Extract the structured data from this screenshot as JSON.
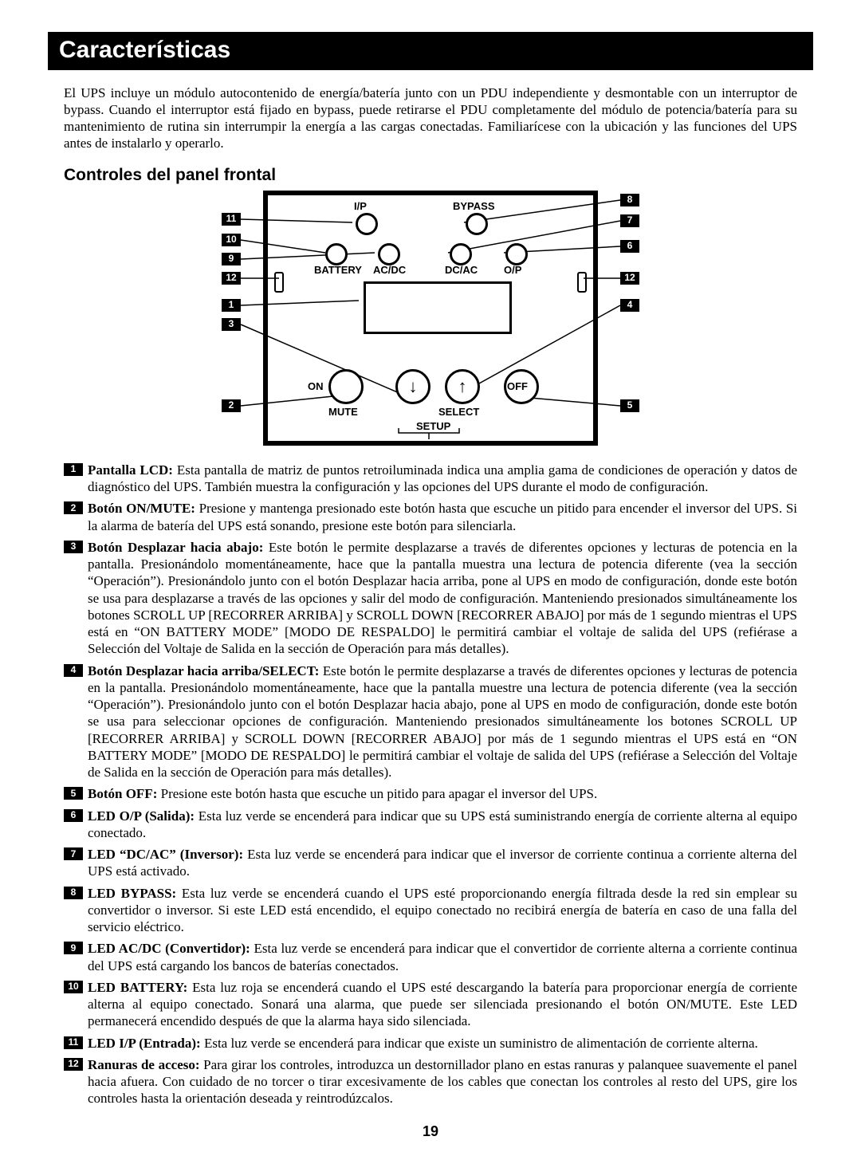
{
  "title": "Características",
  "intro": "El UPS incluye un módulo autocontenido de energía/batería junto con un PDU independiente y desmontable con un interruptor de bypass. Cuando el interruptor está fijado en bypass, puede retirarse el PDU completamente del módulo de potencia/batería para su mantenimiento de rutina sin interrumpir la energía a las cargas conectadas. Familiarícese con la ubicación y las funciones del UPS antes de instalarlo y operarlo.",
  "subhead": "Controles del panel frontal",
  "page_number": "19",
  "diagram": {
    "top_labels": {
      "ip": "I/P",
      "bypass": "BYPASS"
    },
    "mid_labels": {
      "battery": "BATTERY",
      "acdc": "AC/DC",
      "dcac": "DC/AC",
      "op": "O/P"
    },
    "btn_labels": {
      "on": "ON",
      "mute": "MUTE",
      "select": "SELECT",
      "setup": "SETUP",
      "off": "OFF"
    },
    "callouts": {
      "c1": "1",
      "c2": "2",
      "c3": "3",
      "c4": "4",
      "c5": "5",
      "c6": "6",
      "c7": "7",
      "c8": "8",
      "c9": "9",
      "c10": "10",
      "c11": "11",
      "c12l": "12",
      "c12r": "12"
    }
  },
  "items": [
    {
      "n": "1",
      "lead": "Pantalla LCD:",
      "body": " Esta pantalla de matriz de puntos retroiluminada indica una amplia gama de condiciones de operación y datos de diagnóstico del UPS. También muestra la configuración y las opciones del UPS durante el modo de configuración."
    },
    {
      "n": "2",
      "lead": "Botón ON/MUTE:",
      "body": " Presione y mantenga presionado este botón hasta que escuche un pitido para encender el inversor del UPS. Si la alarma de batería del UPS está sonando, presione este botón para silenciarla."
    },
    {
      "n": "3",
      "lead": "Botón Desplazar hacia abajo:",
      "body": " Este botón le permite desplazarse a través de diferentes opciones y lecturas de potencia en la pantalla. Presionándolo momentáneamente, hace que la pantalla muestra una lectura de potencia diferente (vea la sección “Operación”). Presionándolo junto con el botón Desplazar hacia arriba, pone al UPS en modo de configuración, donde este botón se usa para desplazarse a través de las opciones y salir del modo de configuración. Manteniendo presionados simultáneamente los botones SCROLL UP [RECORRER ARRIBA] y SCROLL DOWN [RECORRER ABAJO] por más de 1 segundo mientras el UPS está en “ON BATTERY MODE” [MODO DE RESPALDO] le permitirá cambiar el voltaje de salida del UPS (refiérase a Selección del Voltaje de Salida en la sección de Operación para más detalles)."
    },
    {
      "n": "4",
      "lead": "Botón Desplazar hacia arriba/SELECT:",
      "body": " Este botón le permite desplazarse a través de diferentes opciones y lecturas de potencia en la pantalla. Presionándolo momentáneamente, hace que la pantalla muestre una lectura de potencia diferente (vea la sección “Operación”). Presionándolo junto con el botón Desplazar hacia abajo, pone al UPS en modo de configuración, donde este botón se usa para seleccionar opciones de configuración. Manteniendo presionados simultáneamente los botones SCROLL UP [RECORRER ARRIBA] y SCROLL DOWN [RECORRER ABAJO] por más de 1 segundo mientras el UPS está en “ON BATTERY MODE” [MODO DE RESPALDO] le permitirá cambiar el voltaje de salida del UPS (refiérase a Selección del Voltaje de Salida en la sección de Operación para más detalles)."
    },
    {
      "n": "5",
      "lead": "Botón OFF:",
      "body": " Presione este botón hasta que escuche un pitido para apagar el inversor del UPS."
    },
    {
      "n": "6",
      "lead": "LED O/P (Salida):",
      "body": " Esta luz verde se encenderá para indicar que su UPS está suministrando energía de corriente alterna al equipo conectado."
    },
    {
      "n": "7",
      "lead": "LED “DC/AC” (Inversor):",
      "body": " Esta luz verde se encenderá para indicar que el inversor de corriente continua a corriente alterna del UPS está activado."
    },
    {
      "n": "8",
      "lead": "LED BYPASS:",
      "body": " Esta luz verde se encenderá cuando el UPS esté proporcionando energía filtrada desde la red sin emplear su convertidor o inversor. Si este LED está encendido, el equipo conectado no recibirá energía de batería en caso de una falla del servicio eléctrico."
    },
    {
      "n": "9",
      "lead": "LED AC/DC (Convertidor):",
      "body": " Esta luz verde se encenderá para indicar que el convertidor de corriente alterna a corriente continua del UPS está cargando los bancos de baterías conectados."
    },
    {
      "n": "10",
      "lead": "LED BATTERY:",
      "body": " Esta luz roja se encenderá cuando el UPS esté descargando la batería para proporcionar energía de corriente alterna al equipo conectado. Sonará una alarma, que puede ser silenciada presionando el botón ON/MUTE. Este LED permanecerá encendido después de que la alarma haya sido silenciada."
    },
    {
      "n": "11",
      "lead": "LED I/P (Entrada):",
      "body": " Esta luz verde se encenderá para indicar que existe un suministro de alimentación de corriente alterna."
    },
    {
      "n": "12",
      "lead": "Ranuras de acceso:",
      "body": " Para girar los controles, introduzca un destornillador plano en estas ranuras y palanquee suavemente el panel hacia afuera. Con cuidado de no torcer o tirar excesivamente de los cables que conectan los controles al resto del UPS, gire los controles hasta la orientación deseada y reintrodúzcalos."
    }
  ]
}
